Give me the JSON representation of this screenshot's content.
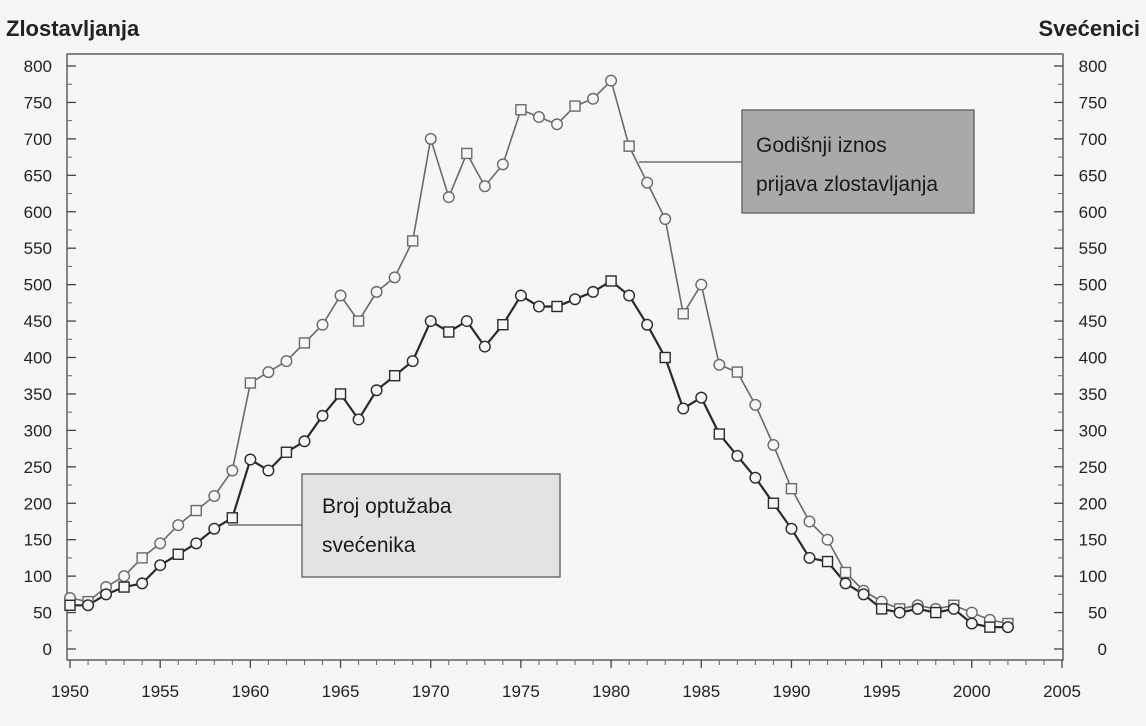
{
  "chart_data": {
    "type": "line",
    "left_axis_label": "Zlostavljanja",
    "right_axis_label": "Svećenici",
    "x_ticks": [
      "1950",
      "1955",
      "1960",
      "1965",
      "1970",
      "1975",
      "1980",
      "1985",
      "1990",
      "1995",
      "2000",
      "2005"
    ],
    "y_ticks": [
      "0",
      "50",
      "100",
      "150",
      "200",
      "250",
      "300",
      "350",
      "400",
      "450",
      "500",
      "550",
      "600",
      "650",
      "700",
      "750",
      "800"
    ],
    "xlim": [
      1950,
      2005
    ],
    "ylim": [
      0,
      800
    ],
    "grid": false,
    "x": [
      1950,
      1951,
      1952,
      1953,
      1954,
      1955,
      1956,
      1957,
      1958,
      1959,
      1960,
      1961,
      1962,
      1963,
      1964,
      1965,
      1966,
      1967,
      1968,
      1969,
      1970,
      1971,
      1972,
      1973,
      1974,
      1975,
      1976,
      1977,
      1978,
      1979,
      1980,
      1981,
      1982,
      1983,
      1984,
      1985,
      1986,
      1987,
      1988,
      1989,
      1990,
      1991,
      1992,
      1993,
      1994,
      1995,
      1996,
      1997,
      1998,
      1999,
      2000,
      2001,
      2002
    ],
    "series": [
      {
        "name": "Godišnji iznos prijava zlostavljanja",
        "color": "#6a6a6a",
        "values": [
          70,
          65,
          85,
          100,
          125,
          145,
          170,
          190,
          210,
          245,
          365,
          380,
          395,
          420,
          445,
          485,
          450,
          490,
          510,
          560,
          700,
          620,
          680,
          635,
          665,
          740,
          730,
          720,
          745,
          755,
          780,
          690,
          640,
          590,
          460,
          500,
          390,
          380,
          335,
          280,
          220,
          175,
          150,
          105,
          80,
          65,
          55,
          60,
          55,
          60,
          50,
          40,
          35
        ]
      },
      {
        "name": "Broj optužaba svećenika",
        "color": "#2a2a2a",
        "values": [
          60,
          60,
          75,
          85,
          90,
          115,
          130,
          145,
          165,
          180,
          260,
          245,
          270,
          285,
          320,
          350,
          315,
          355,
          375,
          395,
          450,
          435,
          450,
          415,
          445,
          485,
          470,
          470,
          480,
          490,
          505,
          485,
          445,
          400,
          330,
          345,
          295,
          265,
          235,
          200,
          165,
          125,
          120,
          90,
          75,
          55,
          50,
          55,
          50,
          55,
          35,
          30,
          30
        ]
      }
    ],
    "annotations": [
      {
        "lines": [
          "Godišnji iznos",
          "prijava zlostavljanja"
        ],
        "series": 0
      },
      {
        "lines": [
          "Broj optužaba",
          "svećenika"
        ],
        "series": 1
      }
    ]
  }
}
